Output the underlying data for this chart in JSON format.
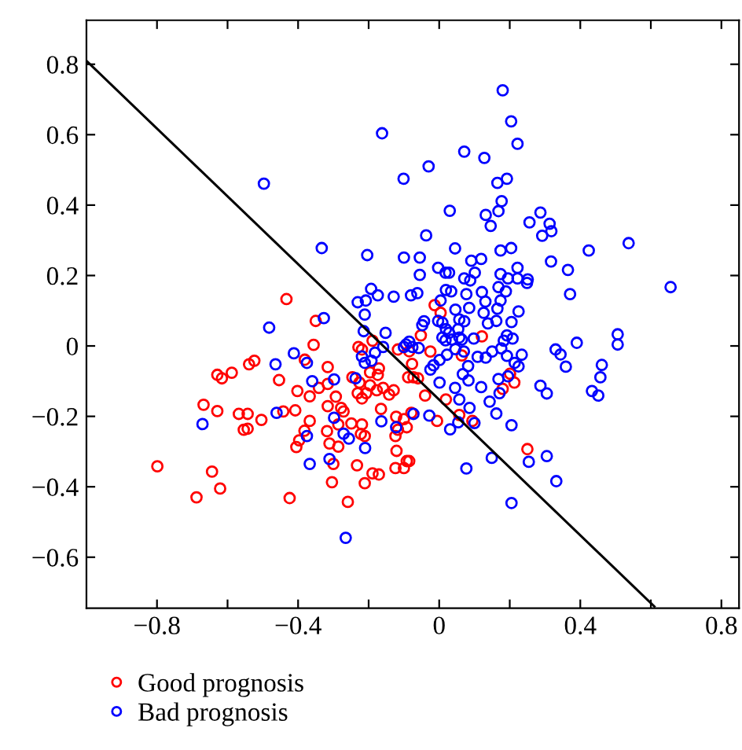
{
  "chart_data": {
    "type": "scatter",
    "legend": "bottom",
    "grid": false,
    "xlim": [
      -1.0,
      0.85
    ],
    "ylim": [
      -0.745,
      0.925
    ],
    "xticks": [
      {
        "value": -0.8,
        "label": "−0.8"
      },
      {
        "value": -0.6,
        "label": null
      },
      {
        "value": -0.4,
        "label": "−0.4"
      },
      {
        "value": -0.2,
        "label": null
      },
      0,
      {
        "value": 0.2,
        "label": null
      },
      0.4,
      {
        "value": 0.6,
        "label": null
      },
      0.8
    ],
    "yticks": [
      {
        "value": -0.6,
        "label": "−0.6"
      },
      {
        "value": -0.4,
        "label": "−0.4"
      },
      {
        "value": -0.2,
        "label": "−0.2"
      },
      0,
      0.2,
      0.4,
      0.6,
      0.8
    ],
    "series": [
      {
        "name": "Good prognosis",
        "color": "#ff0000",
        "marker": "circle",
        "x": [
          -0.433,
          -0.013,
          0.004,
          -0.052,
          -0.025,
          -0.077,
          -0.073,
          -0.06,
          -0.04,
          -0.006,
          0.019,
          0.064,
          0.057,
          0.094,
          0.201,
          0.213,
          0.18,
          0.25,
          -0.079,
          -0.085,
          0.121,
          -0.35,
          -0.356,
          -0.316,
          -0.381,
          -0.539,
          -0.524,
          -0.588,
          -0.629,
          -0.616,
          -0.454,
          -0.668,
          -0.629,
          -0.568,
          -0.543,
          -0.504,
          -0.554,
          -0.543,
          -0.442,
          -0.408,
          -0.402,
          -0.367,
          -0.341,
          -0.316,
          -0.293,
          -0.367,
          -0.382,
          -0.397,
          -0.405,
          -0.318,
          -0.311,
          -0.286,
          -0.3,
          -0.304,
          -0.259,
          -0.316,
          -0.278,
          -0.271,
          -0.249,
          -0.286,
          -0.246,
          -0.226,
          -0.231,
          -0.219,
          -0.207,
          -0.196,
          -0.177,
          -0.159,
          -0.142,
          -0.129,
          -0.229,
          -0.219,
          -0.189,
          -0.196,
          -0.171,
          -0.174,
          -0.117,
          -0.219,
          -0.211,
          -0.222,
          -0.233,
          -0.211,
          -0.189,
          -0.171,
          -0.165,
          -0.122,
          -0.117,
          -0.124,
          -0.121,
          -0.124,
          -0.1,
          -0.092,
          -0.1,
          -0.092,
          -0.088,
          -0.085,
          -0.799,
          -0.644,
          -0.688,
          -0.621,
          -0.424
        ],
        "values": [
          0.133,
          0.116,
          0.094,
          0.03,
          -0.016,
          -0.051,
          -0.089,
          -0.092,
          -0.141,
          -0.213,
          -0.152,
          -0.027,
          -0.196,
          -0.213,
          -0.079,
          -0.104,
          -0.122,
          -0.293,
          -0.19,
          -0.327,
          0.027,
          0.071,
          0.003,
          -0.06,
          -0.039,
          -0.052,
          -0.042,
          -0.076,
          -0.082,
          -0.092,
          -0.097,
          -0.167,
          -0.185,
          -0.193,
          -0.193,
          -0.21,
          -0.238,
          -0.235,
          -0.186,
          -0.183,
          -0.128,
          -0.143,
          -0.119,
          -0.108,
          -0.144,
          -0.213,
          -0.241,
          -0.268,
          -0.287,
          -0.242,
          -0.277,
          -0.286,
          -0.335,
          -0.387,
          -0.443,
          -0.171,
          -0.176,
          -0.186,
          -0.22,
          -0.223,
          -0.089,
          -0.104,
          -0.134,
          -0.149,
          -0.134,
          -0.112,
          -0.126,
          -0.119,
          -0.138,
          -0.126,
          -0.003,
          -0.01,
          0.015,
          -0.075,
          -0.064,
          -0.082,
          -0.01,
          -0.223,
          -0.256,
          -0.25,
          -0.339,
          -0.39,
          -0.362,
          -0.365,
          -0.179,
          -0.201,
          -0.238,
          -0.256,
          -0.298,
          -0.347,
          -0.347,
          -0.327,
          -0.208,
          -0.231,
          -0.089,
          -0.015,
          -0.342,
          -0.357,
          -0.43,
          -0.405,
          -0.432
        ]
      },
      {
        "name": "Bad prognosis",
        "color": "#0000ff",
        "marker": "circle",
        "x": [
          -0.497,
          -0.162,
          -0.101,
          -0.333,
          -0.204,
          -0.1,
          -0.193,
          -0.231,
          -0.208,
          -0.174,
          -0.129,
          -0.08,
          0.18,
          0.204,
          0.222,
          0.071,
          0.128,
          -0.03,
          0.165,
          0.192,
          0.177,
          0.03,
          0.132,
          0.168,
          0.146,
          0.287,
          0.256,
          0.313,
          0.318,
          0.292,
          -0.037,
          0.424,
          0.537,
          0.045,
          0.174,
          0.204,
          -0.055,
          0.091,
          0.119,
          0.317,
          -0.003,
          0.018,
          0.028,
          -0.055,
          0.101,
          0.222,
          0.365,
          0.071,
          0.088,
          0.174,
          0.195,
          0.222,
          0.251,
          0.249,
          0.656,
          0.371,
          -0.062,
          0.019,
          0.034,
          0.077,
          0.121,
          0.131,
          0.174,
          0.189,
          0.168,
          0.004,
          0.046,
          0.085,
          0.126,
          0.165,
          0.225,
          -0.043,
          -0.048,
          -0.003,
          0.009,
          0.057,
          0.071,
          0.138,
          0.162,
          0.205,
          0.054,
          0.019,
          0.028,
          0.009,
          0.018,
          0.036,
          0.057,
          0.064,
          0.098,
          0.208,
          0.192,
          0.183,
          0.506,
          0.506,
          0.39,
          0.33,
          0.344,
          0.359,
          0.461,
          0.457,
          0.433,
          0.451,
          0.287,
          0.305,
          -0.085,
          -0.076,
          -0.094,
          -0.058,
          -0.025,
          -0.016,
          0.001,
          0.022,
          0.046,
          0.07,
          0.109,
          0.132,
          0.15,
          0.176,
          0.192,
          0.234,
          0.082,
          0.067,
          0.083,
          0.214,
          0.225,
          0.195,
          0.168,
          0.119,
          0.171,
          0.143,
          0.162,
          0.001,
          0.045,
          0.057,
          0.086,
          0.1,
          0.054,
          0.031,
          -0.028,
          0.205,
          0.305,
          0.254,
          0.149,
          0.332,
          0.077,
          0.205,
          -0.073,
          -0.327,
          -0.482,
          -0.211,
          -0.214,
          -0.152,
          -0.412,
          -0.375,
          -0.464,
          -0.219,
          -0.192,
          -0.211,
          -0.182,
          -0.159,
          -0.1,
          -0.36,
          -0.298,
          -0.237,
          -0.671,
          -0.461,
          -0.298,
          -0.271,
          -0.256,
          -0.375,
          -0.164,
          -0.122,
          -0.21,
          -0.311,
          -0.367,
          -0.265
        ],
        "values": [
          0.461,
          0.604,
          0.475,
          0.278,
          0.258,
          0.251,
          0.162,
          0.124,
          0.129,
          0.144,
          0.14,
          0.144,
          0.726,
          0.638,
          0.574,
          0.552,
          0.534,
          0.51,
          0.463,
          0.475,
          0.411,
          0.384,
          0.372,
          0.383,
          0.341,
          0.379,
          0.351,
          0.347,
          0.326,
          0.313,
          0.314,
          0.271,
          0.292,
          0.277,
          0.271,
          0.278,
          0.251,
          0.242,
          0.247,
          0.24,
          0.222,
          0.208,
          0.208,
          0.202,
          0.208,
          0.222,
          0.216,
          0.192,
          0.186,
          0.204,
          0.192,
          0.192,
          0.189,
          0.179,
          0.167,
          0.147,
          0.15,
          0.159,
          0.155,
          0.147,
          0.153,
          0.126,
          0.129,
          0.155,
          0.167,
          0.129,
          0.103,
          0.108,
          0.094,
          0.106,
          0.098,
          0.07,
          0.059,
          0.071,
          0.066,
          0.075,
          0.07,
          0.064,
          0.071,
          0.068,
          0.048,
          0.048,
          0.037,
          0.024,
          0.016,
          0.018,
          0.024,
          0.018,
          0.021,
          0.021,
          0.03,
          0.015,
          0.033,
          0.004,
          0.009,
          -0.01,
          -0.024,
          -0.059,
          -0.054,
          -0.089,
          -0.128,
          -0.141,
          -0.113,
          -0.135,
          0.012,
          -0.003,
          0.004,
          -0.006,
          -0.067,
          -0.055,
          -0.04,
          -0.025,
          -0.009,
          -0.016,
          -0.031,
          -0.033,
          -0.016,
          -0.007,
          -0.028,
          -0.025,
          -0.057,
          -0.08,
          -0.098,
          -0.048,
          -0.058,
          -0.086,
          -0.094,
          -0.117,
          -0.134,
          -0.158,
          -0.192,
          -0.104,
          -0.119,
          -0.152,
          -0.176,
          -0.219,
          -0.217,
          -0.237,
          -0.198,
          -0.225,
          -0.313,
          -0.329,
          -0.318,
          -0.384,
          -0.348,
          -0.446,
          -0.193,
          0.079,
          0.052,
          0.089,
          0.042,
          0.037,
          -0.021,
          -0.048,
          -0.052,
          -0.03,
          -0.042,
          -0.048,
          -0.019,
          -0.003,
          -0.003,
          -0.1,
          -0.095,
          -0.092,
          -0.222,
          -0.19,
          -0.204,
          -0.249,
          -0.263,
          -0.256,
          -0.214,
          -0.231,
          -0.29,
          -0.321,
          -0.335,
          -0.545
        ]
      },
      {
        "type": "line",
        "color": "#000000",
        "marker": "none",
        "x": [
          -1.0,
          0.61
        ],
        "values": [
          0.81,
          -0.74
        ]
      }
    ]
  }
}
